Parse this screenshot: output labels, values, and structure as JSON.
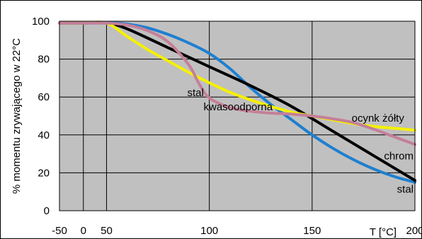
{
  "chart_data": {
    "type": "line",
    "title": "",
    "xlabel": "T [°C]",
    "ylabel": "% momentu zrywającego w 22°C",
    "x_ticks": [
      {
        "value": -50,
        "label": "-50"
      },
      {
        "value": 0,
        "label": "0"
      },
      {
        "value": 50,
        "label": "50"
      },
      {
        "value": 100,
        "label": "100"
      },
      {
        "value": 150,
        "label": "150"
      },
      {
        "value": 200,
        "label": "200"
      }
    ],
    "x_gridlines": [
      -50,
      0,
      50,
      100,
      150
    ],
    "x_segments": [
      {
        "from": -50,
        "to": 0,
        "frac_from": 0,
        "frac_to": 0.0672
      },
      {
        "from": 0,
        "to": 50,
        "frac_from": 0.0672,
        "frac_to": 0.1324
      },
      {
        "from": 50,
        "to": 200,
        "frac_from": 0.1324,
        "frac_to": 1.0
      }
    ],
    "ylim": [
      0,
      100
    ],
    "y_ticks": [
      0,
      20,
      40,
      60,
      80,
      100
    ],
    "grid": true,
    "plot_background": "#c0c0c0",
    "series": [
      {
        "name": "stal",
        "color": "#1e7fd0",
        "x": [
          -50,
          0,
          50,
          55,
          60,
          70,
          80,
          90,
          100,
          110,
          120,
          130,
          140,
          150,
          160,
          170,
          180,
          190,
          200
        ],
        "y": [
          99,
          99,
          99,
          99,
          98.5,
          96.5,
          93,
          88.5,
          83,
          75,
          65,
          56,
          48,
          40,
          33,
          27,
          22,
          18,
          15
        ]
      },
      {
        "name": "chrom",
        "color": "#000000",
        "x": [
          -50,
          0,
          50,
          60,
          80,
          100,
          120,
          140,
          160,
          180,
          200
        ],
        "y": [
          99,
          99,
          99,
          96,
          86,
          76,
          66,
          55,
          42,
          29,
          16
        ]
      },
      {
        "name": "ocynk żółty",
        "color": "#f5f000",
        "x": [
          -50,
          0,
          50,
          60,
          70,
          80,
          90,
          100,
          110,
          120,
          130,
          140,
          150,
          160,
          170,
          180,
          190,
          200
        ],
        "y": [
          99,
          99,
          99,
          92,
          85,
          79,
          73,
          67.5,
          62.5,
          58.5,
          55,
          52,
          50,
          48,
          46,
          44.5,
          43.5,
          42.5
        ]
      },
      {
        "name": "stal kwasoodporna",
        "color": "#c47f99",
        "x": [
          -50,
          0,
          50,
          60,
          70,
          80,
          90,
          95,
          100,
          110,
          120,
          130,
          140,
          150,
          160,
          170,
          180,
          190,
          200
        ],
        "y": [
          99,
          99,
          99,
          98,
          95,
          89,
          77,
          67,
          59.5,
          54.5,
          52.5,
          51.5,
          51,
          50,
          48.5,
          46.5,
          43,
          39,
          35
        ]
      }
    ],
    "annotations": [
      {
        "id": "ann-stal-kwasoodporna-1",
        "text": "stal",
        "x": 98,
        "y": 60.5,
        "anchor": "end"
      },
      {
        "id": "ann-stal-kwasoodporna-2",
        "text": "kwasoodporna",
        "x": 114,
        "y": 53,
        "anchor": "middle"
      },
      {
        "id": "ann-ocynk",
        "text": "ocynk żółty",
        "x": 182,
        "y": 47,
        "anchor": "middle"
      },
      {
        "id": "ann-chrom",
        "text": "chrom",
        "x": 200,
        "y": 27,
        "anchor": "end"
      },
      {
        "id": "ann-stal",
        "text": "stal",
        "x": 200,
        "y": 9.5,
        "anchor": "end"
      }
    ]
  }
}
